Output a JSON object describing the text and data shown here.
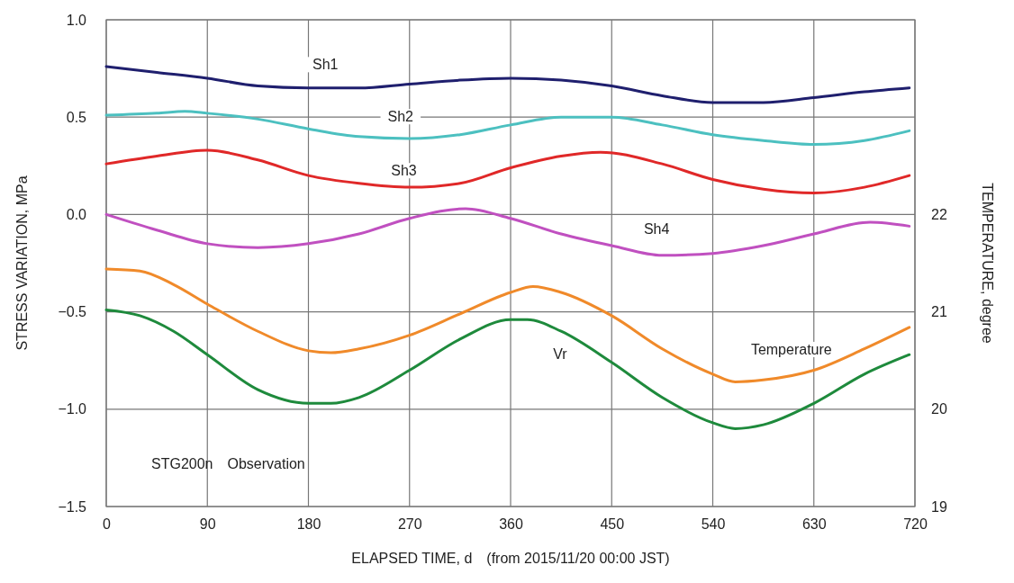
{
  "chart_data": {
    "type": "line",
    "xlabel": "ELAPSED TIME, d　(from 2015/11/20 00:00 JST)",
    "ylabel": "STRESS VARIATION, MPa",
    "y2label": "TEMPERATURE, degree",
    "annotations": [
      "STG200n　Observation"
    ],
    "xlim": [
      0,
      720
    ],
    "xticks": [
      0,
      90,
      180,
      270,
      360,
      450,
      540,
      630,
      720
    ],
    "ylim": [
      -1.5,
      1.0
    ],
    "yticks": [
      -1.5,
      {
        "value": -1,
        "label": "−1.0"
      },
      -0.5,
      {
        "value": 0,
        "label": "0.0"
      },
      0.5,
      {
        "value": 1,
        "label": "1.0"
      }
    ],
    "y2lim": [
      19,
      24
    ],
    "y2ticks": [
      19,
      20,
      21,
      22
    ],
    "grid": true,
    "legend": false,
    "line_style": "solid",
    "marker": "none",
    "series": [
      {
        "name": "Sh1",
        "color": "#1f1f6e",
        "x": [
          0,
          45,
          90,
          135,
          180,
          225,
          270,
          315,
          360,
          405,
          450,
          495,
          540,
          585,
          630,
          675,
          715
        ],
        "values": [
          0.76,
          0.73,
          0.7,
          0.66,
          0.65,
          0.65,
          0.67,
          0.69,
          0.7,
          0.69,
          0.66,
          0.61,
          0.575,
          0.575,
          0.6,
          0.63,
          0.65
        ]
      },
      {
        "name": "Sh2",
        "color": "#4cc0c0",
        "x": [
          0,
          45,
          70,
          90,
          135,
          180,
          225,
          270,
          315,
          360,
          405,
          450,
          495,
          540,
          585,
          630,
          675,
          715
        ],
        "values": [
          0.51,
          0.52,
          0.53,
          0.52,
          0.49,
          0.44,
          0.4,
          0.39,
          0.41,
          0.46,
          0.5,
          0.5,
          0.46,
          0.41,
          0.38,
          0.36,
          0.38,
          0.43
        ]
      },
      {
        "name": "Sh3",
        "color": "#e02828",
        "x": [
          0,
          45,
          90,
          135,
          180,
          225,
          270,
          315,
          360,
          405,
          440,
          495,
          540,
          585,
          630,
          675,
          715
        ],
        "values": [
          0.26,
          0.3,
          0.33,
          0.28,
          0.2,
          0.16,
          0.14,
          0.16,
          0.24,
          0.3,
          0.32,
          0.26,
          0.18,
          0.13,
          0.11,
          0.14,
          0.2
        ]
      },
      {
        "name": "Sh4",
        "color": "#c050c0",
        "x": [
          0,
          45,
          90,
          135,
          180,
          225,
          270,
          320,
          360,
          405,
          450,
          495,
          540,
          585,
          630,
          680,
          715
        ],
        "values": [
          0.0,
          -0.08,
          -0.15,
          -0.17,
          -0.15,
          -0.1,
          -0.02,
          0.03,
          -0.02,
          -0.1,
          -0.16,
          -0.21,
          -0.2,
          -0.16,
          -0.1,
          -0.04,
          -0.06
        ]
      },
      {
        "name": "Temperature",
        "color": "#f08a2a",
        "axis": "y2",
        "x": [
          0,
          30,
          60,
          90,
          135,
          180,
          200,
          225,
          270,
          315,
          360,
          380,
          405,
          450,
          495,
          540,
          560,
          585,
          630,
          675,
          715
        ],
        "values": [
          21.44,
          21.42,
          21.28,
          21.08,
          20.8,
          20.6,
          20.58,
          20.62,
          20.76,
          20.98,
          21.2,
          21.26,
          21.2,
          20.96,
          20.62,
          20.36,
          20.28,
          20.3,
          20.4,
          20.62,
          20.84
        ]
      },
      {
        "name": "Vr",
        "color": "#1e8a3c",
        "x": [
          0,
          30,
          60,
          90,
          135,
          180,
          200,
          225,
          270,
          315,
          360,
          375,
          405,
          450,
          495,
          540,
          560,
          585,
          630,
          675,
          715
        ],
        "values": [
          -0.49,
          -0.52,
          -0.6,
          -0.72,
          -0.9,
          -0.97,
          -0.97,
          -0.94,
          -0.8,
          -0.64,
          -0.54,
          -0.54,
          -0.6,
          -0.76,
          -0.94,
          -1.07,
          -1.1,
          -1.08,
          -0.97,
          -0.82,
          -0.72
        ]
      }
    ]
  }
}
